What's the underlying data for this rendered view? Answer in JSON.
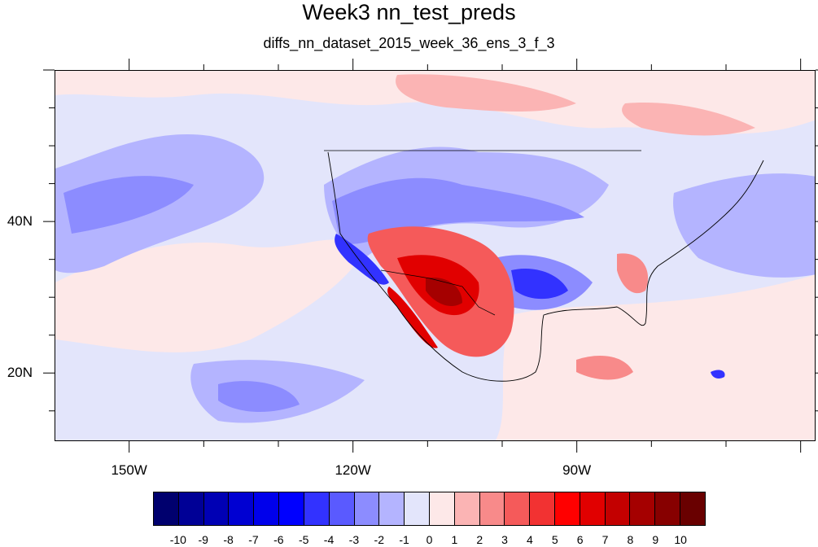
{
  "title": "Week3 nn_test_preds",
  "subtitle": "diffs_nn_dataset_2015_week_36_ens_3_f_3",
  "map": {
    "lon_range": [
      -160,
      -58
    ],
    "lat_range": [
      11,
      60
    ],
    "lon_labels": [
      {
        "lon": -150,
        "text": "150W"
      },
      {
        "lon": -120,
        "text": "120W"
      },
      {
        "lon": -90,
        "text": "90W"
      }
    ],
    "lat_labels": [
      {
        "lat": 40,
        "text": "40N"
      },
      {
        "lat": 20,
        "text": "20N"
      }
    ]
  },
  "colorbar": {
    "labels": [
      "-10",
      "-9",
      "-8",
      "-7",
      "-6",
      "-5",
      "-4",
      "-3",
      "-2",
      "-1",
      "0",
      "1",
      "2",
      "3",
      "4",
      "5",
      "6",
      "7",
      "8",
      "9",
      "10"
    ],
    "colors": [
      "#00006e",
      "#000096",
      "#0000b4",
      "#0000d2",
      "#0000eb",
      "#0000ff",
      "#3232ff",
      "#5a5aff",
      "#8c8cff",
      "#b4b4ff",
      "#e3e5fb",
      "#fde8e8",
      "#fbb4b4",
      "#f88a8a",
      "#f55a5a",
      "#f23232",
      "#ff0000",
      "#e10000",
      "#c30000",
      "#a50000",
      "#870000",
      "#690000"
    ]
  }
}
